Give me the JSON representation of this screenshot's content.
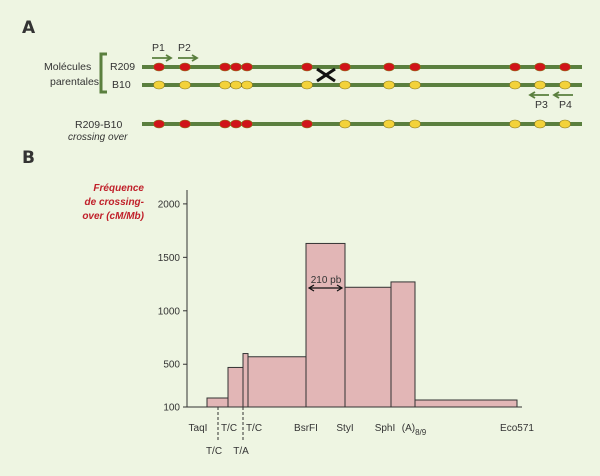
{
  "panel_a": {
    "letter": "A",
    "parental_label_1": "Molécules",
    "parental_label_2": "parentales",
    "r209": "R209",
    "b10": "B10",
    "recomb_1": "R209-B10",
    "recomb_2": "crossing over",
    "primers": [
      "P1",
      "P2",
      "P3",
      "P4"
    ],
    "colors": {
      "line": "#5a7f3e",
      "red": "#d0141a",
      "yellow": "#f3d23a",
      "arrow": "#5a7f3e"
    }
  },
  "panel_b": {
    "letter": "B",
    "ylabel_lines": [
      "Fréquence",
      "de crossing-",
      "over (cM/Mb)"
    ],
    "annotation": "210 pb",
    "bar_color": "#e2b6b6",
    "bar_stroke": "#333333"
  },
  "chart_data": {
    "type": "bar",
    "ylabel": "Fréquence de crossing-over (cM/Mb)",
    "yticks": [
      100,
      500,
      1000,
      1500,
      2000
    ],
    "ylim": [
      0,
      2000
    ],
    "x_tick_labels_top": [
      "TaqI",
      "T/C",
      "T/C",
      "BsrFI",
      "StyI",
      "SphI",
      "(A)8/9",
      "Eco571"
    ],
    "x_tick_labels_bottom": [
      "T/C",
      "T/A"
    ],
    "bars": [
      {
        "from": "TaqI",
        "to": "T/C",
        "value": 100
      },
      {
        "from": "T/C",
        "to": "T/C",
        "value": 470
      },
      {
        "from": "T/C",
        "to": "T/C",
        "value": 600
      },
      {
        "from": "T/C",
        "to": "BsrFI",
        "value": 570
      },
      {
        "from": "BsrFI",
        "to": "StyI",
        "value": 1630
      },
      {
        "from": "StyI",
        "to": "SphI",
        "value": 1220
      },
      {
        "from": "SphI",
        "to": "(A)8/9",
        "value": 1270
      },
      {
        "from": "(A)8/9",
        "to": "Eco571",
        "value": 90
      }
    ]
  }
}
